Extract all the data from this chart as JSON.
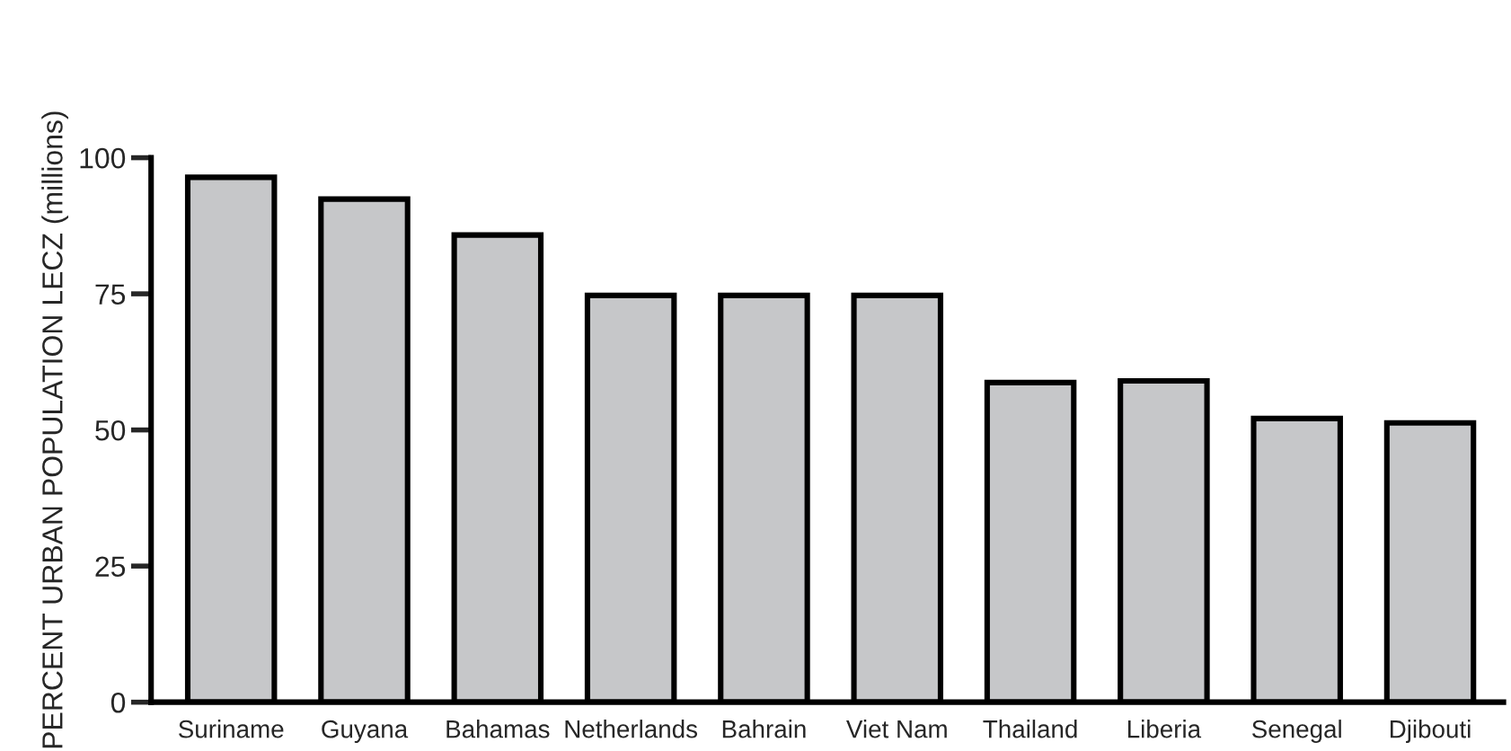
{
  "chart_data": {
    "type": "bar",
    "ylabel": "PERCENT URBAN POPULATION LECZ (millions)",
    "categories": [
      "Suriname",
      "Guyana",
      "Bahamas",
      "Netherlands",
      "Bahrain",
      "Viet Nam",
      "Thailand",
      "Liberia",
      "Senegal",
      "Djibouti"
    ],
    "values": [
      96.4,
      92.4,
      85.8,
      74.7,
      74.7,
      74.7,
      58.7,
      59,
      52.1,
      51.3
    ],
    "color": "#c6c7c9",
    "ylim": [
      0,
      100
    ],
    "yticks": [
      0,
      25,
      50,
      75,
      100
    ],
    "grid": false
  }
}
